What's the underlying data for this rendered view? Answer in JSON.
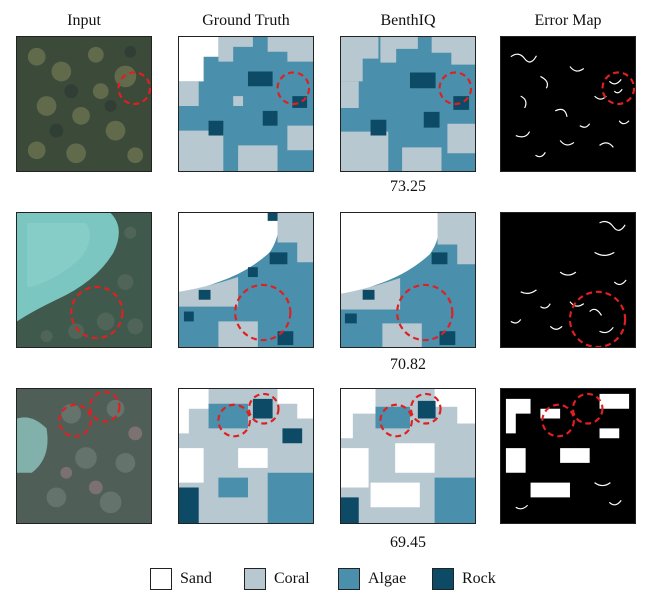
{
  "headers": [
    "Input",
    "Ground Truth",
    "BenthIQ",
    "Error Map"
  ],
  "scores": [
    "73.25",
    "70.82",
    "69.45"
  ],
  "legend": [
    {
      "label": "Sand",
      "color": "#ffffff"
    },
    {
      "label": "Coral",
      "color": "#b8c8d0"
    },
    {
      "label": "Algae",
      "color": "#4a8fab"
    },
    {
      "label": "Rock",
      "color": "#0d4a66"
    }
  ],
  "colors": {
    "sand": "#ffffff",
    "coral": "#b8c8d0",
    "algae": "#4a8fab",
    "rock": "#0d4a66",
    "highlight_circle": "#e02020",
    "error_bg": "#000000",
    "error_fg": "#ffffff"
  }
}
